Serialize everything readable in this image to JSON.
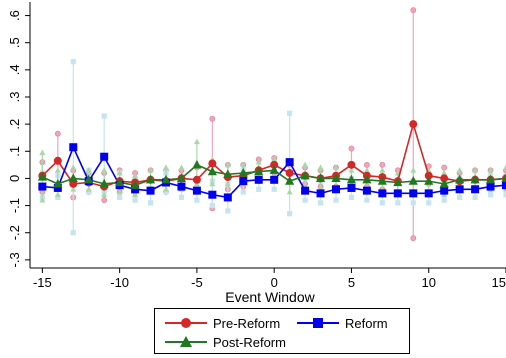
{
  "chart_data": {
    "type": "line",
    "title": "",
    "xlabel": "Event Window",
    "ylabel": "",
    "xlim": [
      -15.8,
      15
    ],
    "ylim": [
      -0.33,
      0.65
    ],
    "x_ticks": [
      -15,
      -10,
      -5,
      0,
      5,
      10,
      15
    ],
    "x_tick_labels": [
      "-15",
      "-10",
      "-5",
      "0",
      "5",
      "10",
      "15"
    ],
    "y_ticks": [
      -0.3,
      -0.2,
      -0.1,
      0,
      0.1,
      0.2,
      0.3,
      0.4,
      0.5,
      0.6
    ],
    "y_tick_labels": [
      "-.3",
      "-.2",
      "-.1",
      "0",
      ".1",
      ".2",
      ".3",
      ".4",
      ".5",
      ".6"
    ],
    "grid": false,
    "legend_position": "bottom",
    "series": [
      {
        "name": "Pre-Reform",
        "color": "#d62728",
        "ci_color": "#f4a3b8",
        "marker": "circle",
        "x": [
          -15,
          -14,
          -13,
          -12,
          -11,
          -10,
          -9,
          -8,
          -7,
          -6,
          -5,
          -4,
          -3,
          -2,
          -1,
          0,
          1,
          2,
          3,
          4,
          5,
          6,
          7,
          8,
          9,
          10,
          11,
          12,
          13,
          14,
          15
        ],
        "values": [
          0.01,
          0.065,
          -0.02,
          -0.015,
          -0.03,
          -0.01,
          -0.015,
          -0.005,
          -0.01,
          0.0,
          -0.005,
          0.055,
          0.005,
          0.01,
          0.03,
          0.05,
          0.02,
          0.01,
          0.0,
          0.01,
          0.05,
          0.01,
          0.005,
          -0.01,
          0.2,
          0.01,
          0.0,
          -0.01,
          -0.005,
          -0.005,
          0.0
        ],
        "ci_low": [
          -0.05,
          -0.03,
          -0.07,
          -0.05,
          -0.08,
          -0.05,
          -0.05,
          -0.04,
          -0.05,
          -0.03,
          -0.05,
          -0.11,
          -0.04,
          -0.03,
          -0.01,
          0.02,
          -0.01,
          -0.02,
          -0.03,
          -0.03,
          -0.01,
          -0.03,
          -0.04,
          -0.05,
          -0.22,
          -0.02,
          -0.04,
          -0.04,
          -0.04,
          -0.04,
          -0.03
        ],
        "ci_high": [
          0.06,
          0.165,
          0.03,
          0.02,
          0.02,
          0.03,
          0.02,
          0.03,
          0.03,
          0.03,
          0.04,
          0.22,
          0.05,
          0.05,
          0.07,
          0.075,
          0.05,
          0.04,
          0.03,
          0.04,
          0.11,
          0.05,
          0.05,
          0.03,
          0.62,
          0.045,
          0.04,
          0.02,
          0.03,
          0.03,
          0.03
        ]
      },
      {
        "name": "Reform",
        "color": "#0000ee",
        "ci_color": "#c4e4f2",
        "marker": "square",
        "x": [
          -15,
          -14,
          -13,
          -12,
          -11,
          -10,
          -9,
          -8,
          -7,
          -6,
          -5,
          -4,
          -3,
          -2,
          -1,
          0,
          1,
          2,
          3,
          4,
          5,
          6,
          7,
          8,
          9,
          10,
          11,
          12,
          13,
          14,
          15
        ],
        "values": [
          -0.03,
          -0.035,
          0.115,
          -0.01,
          0.08,
          -0.025,
          -0.04,
          -0.045,
          -0.015,
          -0.03,
          -0.045,
          -0.06,
          -0.07,
          -0.01,
          -0.005,
          -0.005,
          0.06,
          -0.045,
          -0.055,
          -0.04,
          -0.035,
          -0.045,
          -0.055,
          -0.055,
          -0.055,
          -0.055,
          -0.045,
          -0.04,
          -0.04,
          -0.03,
          -0.025
        ],
        "ci_low": [
          -0.07,
          -0.07,
          -0.2,
          -0.05,
          -0.05,
          -0.07,
          -0.08,
          -0.09,
          -0.05,
          -0.07,
          -0.08,
          -0.1,
          -0.12,
          -0.05,
          -0.04,
          -0.04,
          -0.13,
          -0.08,
          -0.09,
          -0.08,
          -0.07,
          -0.08,
          -0.09,
          -0.09,
          -0.09,
          -0.09,
          -0.08,
          -0.07,
          -0.07,
          -0.06,
          -0.06
        ],
        "ci_high": [
          0.02,
          0.01,
          0.43,
          0.03,
          0.23,
          0.02,
          0.0,
          0.0,
          0.02,
          0.01,
          0.0,
          -0.01,
          -0.02,
          0.03,
          0.03,
          0.03,
          0.24,
          0.0,
          -0.01,
          0.0,
          0.0,
          0.0,
          -0.01,
          -0.01,
          -0.01,
          -0.01,
          0.0,
          0.0,
          0.0,
          0.01,
          0.01
        ]
      },
      {
        "name": "Post-Reform",
        "color": "#1f7a1f",
        "ci_color": "#a8d8a8",
        "marker": "triangle",
        "x": [
          -15,
          -14,
          -13,
          -12,
          -11,
          -10,
          -9,
          -8,
          -7,
          -6,
          -5,
          -4,
          -3,
          -2,
          -1,
          0,
          1,
          2,
          3,
          4,
          5,
          6,
          7,
          8,
          9,
          10,
          11,
          12,
          13,
          14,
          15
        ],
        "values": [
          0.005,
          -0.02,
          0.0,
          -0.005,
          -0.02,
          -0.015,
          -0.025,
          -0.005,
          -0.005,
          0.0,
          0.05,
          0.025,
          0.015,
          0.02,
          0.025,
          0.03,
          -0.01,
          0.01,
          0.0,
          0.0,
          -0.005,
          -0.005,
          -0.01,
          -0.015,
          -0.01,
          -0.01,
          -0.02,
          -0.005,
          -0.005,
          -0.005,
          0.0
        ],
        "ci_low": [
          -0.08,
          -0.06,
          -0.04,
          -0.04,
          -0.06,
          -0.05,
          -0.06,
          -0.04,
          -0.04,
          -0.04,
          -0.02,
          -0.02,
          -0.02,
          -0.02,
          -0.01,
          -0.01,
          -0.05,
          -0.03,
          -0.04,
          -0.04,
          -0.04,
          -0.04,
          -0.05,
          -0.05,
          -0.05,
          -0.05,
          -0.06,
          -0.04,
          -0.04,
          -0.04,
          -0.04
        ],
        "ci_high": [
          0.095,
          0.03,
          0.04,
          0.03,
          0.03,
          0.02,
          0.01,
          0.03,
          0.04,
          0.04,
          0.135,
          0.07,
          0.05,
          0.05,
          0.06,
          0.07,
          0.03,
          0.05,
          0.04,
          0.04,
          0.03,
          0.03,
          0.03,
          0.02,
          0.03,
          0.03,
          0.02,
          0.03,
          0.03,
          0.03,
          0.04
        ]
      }
    ]
  },
  "legend": {
    "pre_label": "Pre-Reform",
    "reform_label": "Reform",
    "post_label": "Post-Reform"
  }
}
